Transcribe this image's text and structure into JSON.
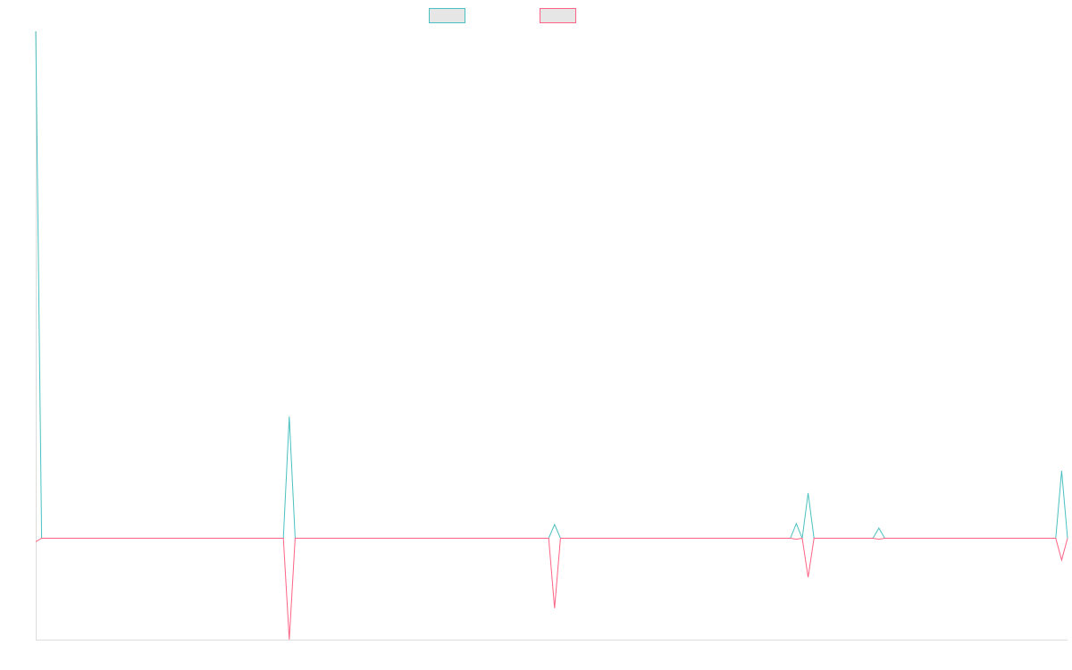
{
  "chart_data": {
    "type": "line",
    "categories": [
      null,
      null,
      null,
      null,
      null,
      null,
      null,
      null,
      null,
      null,
      null,
      null,
      null,
      null,
      null,
      null,
      null,
      null,
      null,
      null,
      null,
      null,
      null,
      null,
      null,
      null,
      null,
      null,
      null,
      null,
      null,
      null,
      null,
      null,
      null,
      null,
      null,
      null,
      null,
      null,
      null,
      null,
      null,
      null,
      null,
      null,
      null,
      null,
      null,
      null,
      null,
      null,
      null,
      null,
      null,
      null,
      null,
      null,
      null,
      null,
      null,
      null,
      null,
      null,
      null,
      null,
      null,
      null,
      null,
      null,
      null,
      null,
      null,
      null,
      null,
      null,
      null,
      null,
      null,
      null,
      null,
      null,
      null,
      null,
      null,
      null,
      null,
      null,
      null,
      null,
      null,
      null,
      null,
      null,
      null,
      null,
      null,
      null,
      null,
      null,
      null,
      null,
      null,
      null,
      null,
      null,
      null,
      null,
      null,
      null,
      null,
      null,
      null,
      null,
      null,
      null,
      null,
      null,
      null,
      null,
      null,
      null,
      null,
      null,
      null,
      null,
      null,
      null,
      null,
      null,
      null,
      null,
      null,
      null,
      null,
      null,
      null,
      null,
      null,
      null,
      null,
      null,
      null,
      null,
      null,
      null,
      null,
      null,
      null,
      null,
      null,
      null,
      null,
      null,
      null,
      null,
      null,
      null,
      null,
      null,
      null,
      null,
      null,
      null,
      null,
      null,
      null,
      null,
      null,
      null,
      null,
      null,
      null,
      null,
      null,
      null
    ],
    "series": [
      {
        "color": "#4bc0c0",
        "values": [
          100,
          0,
          0,
          0,
          0,
          0,
          0,
          0,
          0,
          0,
          0,
          0,
          0,
          0,
          0,
          0,
          0,
          0,
          0,
          0,
          0,
          0,
          0,
          0,
          0,
          0,
          0,
          0,
          0,
          0,
          0,
          0,
          0,
          0,
          0,
          0,
          0,
          0,
          0,
          0,
          0,
          0,
          0,
          24,
          0,
          0,
          0,
          0,
          0,
          0,
          0,
          0,
          0,
          0,
          0,
          0,
          0,
          0,
          0,
          0,
          0,
          0,
          0,
          0,
          0,
          0,
          0,
          0,
          0,
          0,
          0,
          0,
          0,
          0,
          0,
          0,
          0,
          0,
          0,
          0,
          0,
          0,
          0,
          0,
          0,
          0,
          0,
          0,
          2.7,
          0,
          0,
          0,
          0,
          0,
          0,
          0,
          0,
          0,
          0,
          0,
          0,
          0,
          0,
          0,
          0,
          0,
          0,
          0,
          0,
          0,
          0,
          0,
          0,
          0,
          0,
          0,
          0,
          0,
          0,
          0,
          0,
          0,
          0,
          0,
          0,
          0,
          0,
          0,
          0,
          2.9,
          0,
          8.9,
          0,
          0,
          0,
          0,
          0,
          0,
          0,
          0,
          0,
          0,
          0,
          2,
          0,
          0,
          0,
          0,
          0,
          0,
          0,
          0,
          0,
          0,
          0,
          0,
          0,
          0,
          0,
          0,
          0,
          0,
          0,
          0,
          0,
          0,
          0,
          0,
          0,
          0,
          0,
          0,
          0,
          0,
          13.3,
          0
        ]
      },
      {
        "color": "#ff6384",
        "values": [
          -0.7,
          0,
          0,
          0,
          0,
          0,
          0,
          0,
          0,
          0,
          0,
          0,
          0,
          0,
          0,
          0,
          0,
          0,
          0,
          0,
          0,
          0,
          0,
          0,
          0,
          0,
          0,
          0,
          0,
          0,
          0,
          0,
          0,
          0,
          0,
          0,
          0,
          0,
          0,
          0,
          0,
          0,
          0,
          -20,
          0,
          0,
          0,
          0,
          0,
          0,
          0,
          0,
          0,
          0,
          0,
          0,
          0,
          0,
          0,
          0,
          0,
          0,
          0,
          0,
          0,
          0,
          0,
          0,
          0,
          0,
          0,
          0,
          0,
          0,
          0,
          0,
          0,
          0,
          0,
          0,
          0,
          0,
          0,
          0,
          0,
          0,
          0,
          0,
          -13.8,
          0,
          0,
          0,
          0,
          0,
          0,
          0,
          0,
          0,
          0,
          0,
          0,
          0,
          0,
          0,
          0,
          0,
          0,
          0,
          0,
          0,
          0,
          0,
          0,
          0,
          0,
          0,
          0,
          0,
          0,
          0,
          0,
          0,
          0,
          0,
          0,
          0,
          0,
          0,
          0,
          -0.2,
          0,
          -7.7,
          0,
          0,
          0,
          0,
          0,
          0,
          0,
          0,
          0,
          0,
          0,
          -0.2,
          0,
          0,
          0,
          0,
          0,
          0,
          0,
          0,
          0,
          0,
          0,
          0,
          0,
          0,
          0,
          0,
          0,
          0,
          0,
          0,
          0,
          0,
          0,
          0,
          0,
          0,
          0,
          0,
          0,
          0,
          -4.3,
          0
        ]
      }
    ],
    "ylim": [
      -20,
      100
    ]
  }
}
